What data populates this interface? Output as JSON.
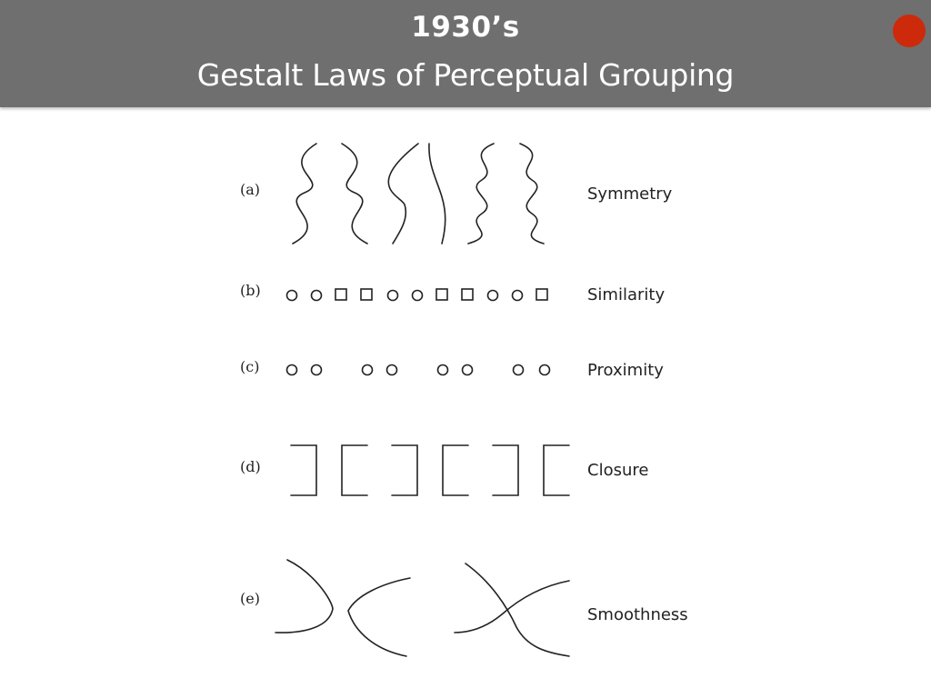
{
  "header": {
    "year": "1930’s",
    "title": "Gestalt Laws of Perceptual Grouping"
  },
  "colors": {
    "header_bg": "#6f6f6f",
    "accent_dot": "#cc2a0a",
    "ink": "#222222"
  },
  "figure": {
    "rows": [
      {
        "tag": "(a)",
        "label": "Symmetry"
      },
      {
        "tag": "(b)",
        "label": "Similarity"
      },
      {
        "tag": "(c)",
        "label": "Proximity"
      },
      {
        "tag": "(d)",
        "label": "Closure"
      },
      {
        "tag": "(e)",
        "label": "Smoothness"
      }
    ],
    "similarity_sequence": [
      "circle",
      "circle",
      "square",
      "square",
      "circle",
      "circle",
      "square",
      "square",
      "circle",
      "circle",
      "square"
    ],
    "proximity_pairs": 4,
    "closure_brackets": [
      "right",
      "left",
      "right",
      "left",
      "right",
      "left"
    ]
  }
}
